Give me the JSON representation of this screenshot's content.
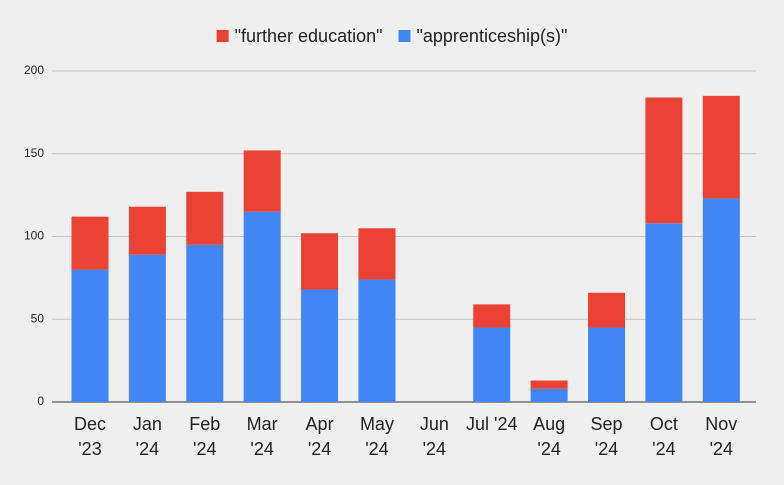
{
  "chart_data": {
    "type": "stacked_bar",
    "categories": [
      "Dec '23",
      "Jan '24",
      "Feb '24",
      "Mar '24",
      "Apr '24",
      "May '24",
      "Jun '24",
      "Jul '24",
      "Aug '24",
      "Sep '24",
      "Oct '24",
      "Nov '24"
    ],
    "series": [
      {
        "name": "\"further education\"",
        "color": "#ea4335",
        "values": [
          32,
          29,
          32,
          37,
          34,
          31,
          0,
          14,
          5,
          21,
          76,
          62
        ]
      },
      {
        "name": "\"apprenticeship(s)\"",
        "color": "#4285f4",
        "values": [
          80,
          89,
          95,
          115,
          68,
          74,
          0,
          45,
          8,
          45,
          108,
          123
        ]
      }
    ],
    "ylim": [
      0,
      200
    ],
    "yticks": [
      0,
      50,
      100,
      150,
      200
    ],
    "grid": true,
    "legend": "top"
  }
}
